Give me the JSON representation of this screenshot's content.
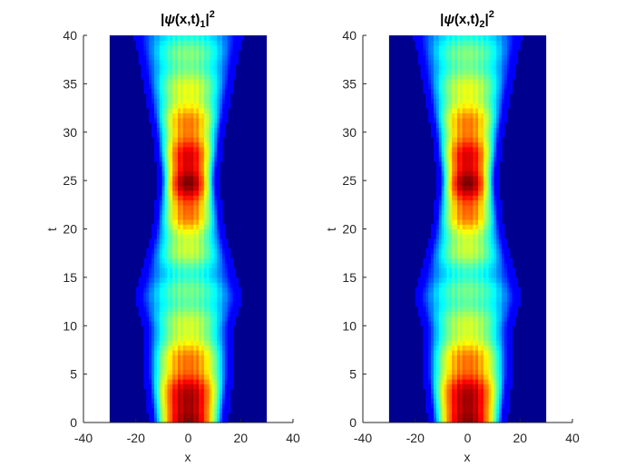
{
  "chart_data": [
    {
      "type": "heatmap",
      "title": {
        "prefix": "|",
        "psi": "ψ",
        "args": "(x,t)",
        "subscript": "1",
        "suffix": "|",
        "superscript": "2"
      },
      "xlabel": "x",
      "ylabel": "t",
      "xlim": [
        -40,
        40
      ],
      "ylim": [
        0,
        40
      ],
      "xticks": [
        -40,
        -20,
        0,
        20,
        40
      ],
      "yticks": [
        0,
        5,
        10,
        15,
        20,
        25,
        30,
        35,
        40
      ],
      "x_range": [
        -30,
        30
      ],
      "t_range": [
        0,
        40
      ],
      "colormap": "jet",
      "grid": false,
      "description_values": {
        "width_profile_t": [
          0,
          5,
          10,
          13,
          15,
          20,
          25,
          30,
          35,
          40
        ],
        "width_profile_halfwidth": [
          13,
          15,
          15,
          18,
          16,
          12,
          10,
          12,
          15,
          18
        ],
        "peak_intensity_t": [
          0,
          2,
          5,
          10,
          15,
          20,
          25,
          30,
          35,
          40
        ],
        "peak_intensity_value": [
          0.95,
          1.0,
          0.8,
          0.5,
          0.35,
          0.6,
          1.0,
          0.75,
          0.5,
          0.35
        ]
      }
    },
    {
      "type": "heatmap",
      "title": {
        "prefix": "|",
        "psi": "ψ",
        "args": "(x,t)",
        "subscript": "2",
        "suffix": "|",
        "superscript": "2"
      },
      "xlabel": "x",
      "ylabel": "t",
      "xlim": [
        -40,
        40
      ],
      "ylim": [
        0,
        40
      ],
      "xticks": [
        -40,
        -20,
        0,
        20,
        40
      ],
      "yticks": [
        0,
        5,
        10,
        15,
        20,
        25,
        30,
        35,
        40
      ],
      "x_range": [
        -30,
        30
      ],
      "t_range": [
        0,
        40
      ],
      "colormap": "jet",
      "grid": false,
      "description_values": {
        "width_profile_t": [
          0,
          5,
          10,
          13,
          15,
          20,
          25,
          30,
          35,
          40
        ],
        "width_profile_halfwidth": [
          13,
          15,
          15,
          18,
          16,
          12,
          10,
          12,
          15,
          18
        ],
        "peak_intensity_t": [
          0,
          2,
          5,
          10,
          15,
          20,
          25,
          30,
          35,
          40
        ],
        "peak_intensity_value": [
          0.95,
          1.0,
          0.8,
          0.5,
          0.35,
          0.6,
          1.0,
          0.75,
          0.5,
          0.35
        ]
      }
    }
  ],
  "colors": {
    "background_field": "#00008f",
    "axis": "#262626"
  }
}
